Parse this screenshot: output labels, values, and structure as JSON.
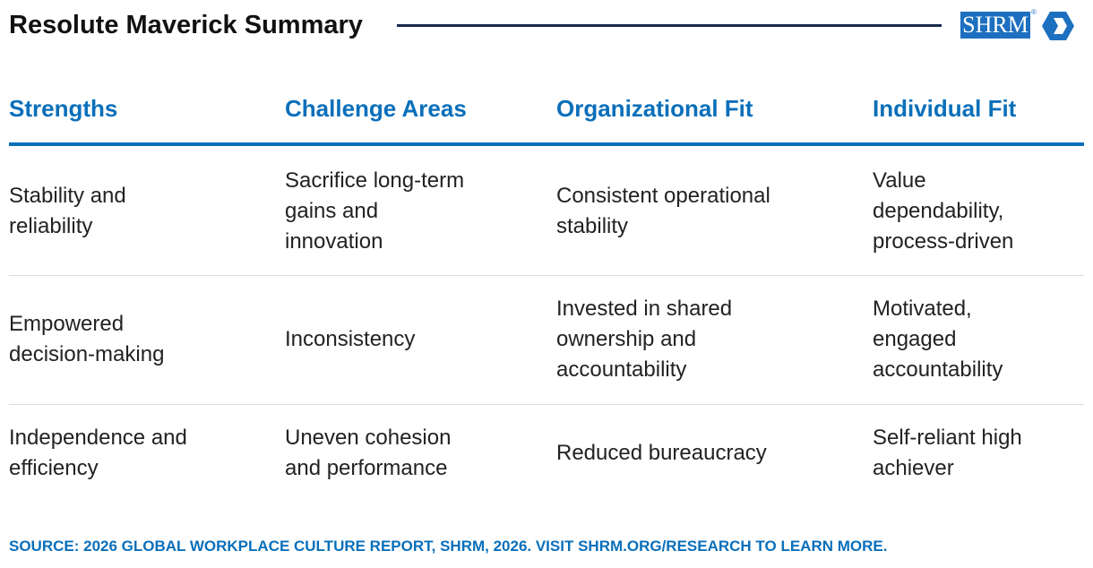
{
  "header": {
    "title": "Resolute Maverick Summary",
    "logo": {
      "text": "SHRM",
      "mark": "®"
    }
  },
  "table": {
    "columns": [
      "Strengths",
      "Challenge Areas",
      "Organizational Fit",
      "Individual Fit"
    ],
    "rows": [
      [
        [
          "Stability and",
          "reliability"
        ],
        [
          "Sacrifice long-term",
          "gains and",
          "innovation"
        ],
        [
          "Consistent operational",
          "stability"
        ],
        [
          "Value",
          "dependability,",
          "process-driven"
        ]
      ],
      [
        [
          "Empowered",
          "decision-making"
        ],
        [
          "Inconsistency"
        ],
        [
          "Invested in shared",
          "ownership and",
          "accountability"
        ],
        [
          "Motivated,",
          "engaged",
          "accountability"
        ]
      ],
      [
        [
          "Independence and",
          "efficiency"
        ],
        [
          "Uneven cohesion",
          "and performance"
        ],
        [
          "Reduced bureaucracy"
        ],
        [
          "Self-reliant high",
          "achiever"
        ]
      ]
    ]
  },
  "source": "SOURCE: 2026 GLOBAL WORKPLACE CULTURE REPORT, SHRM, 2026. VISIT SHRM.ORG/RESEARCH TO LEARN MORE."
}
